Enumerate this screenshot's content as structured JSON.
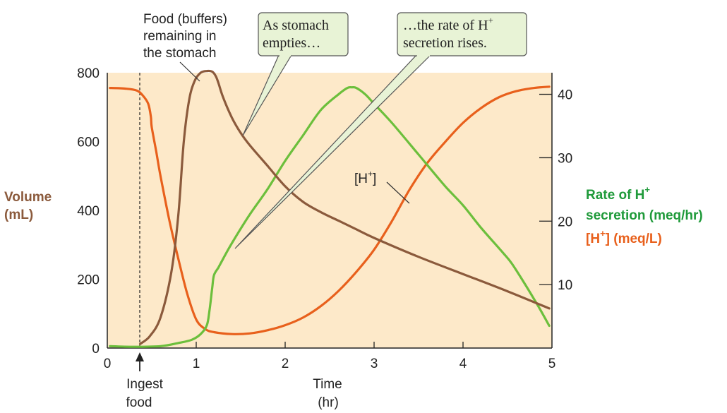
{
  "colors": {
    "plot_bg": "#fde9c9",
    "volume": "#8b5a3c",
    "secretion": "#6cbf3c",
    "h_conc": "#e8601c",
    "secretion_label": "#1f9a3a",
    "h_label": "#e8601c",
    "callout_bg": "#e8f3d6",
    "callout_border": "#555555"
  },
  "chart_data": {
    "type": "line",
    "x_axis": {
      "label": "Time",
      "unit": "(hr)",
      "range": [
        0,
        5
      ],
      "ticks": [
        "0",
        "1",
        "2",
        "3",
        "4",
        "5"
      ]
    },
    "y_left": {
      "label_line1": "Volume",
      "label_line2": "(mL)",
      "range": [
        0,
        800
      ],
      "ticks": [
        "0",
        "200",
        "400",
        "600",
        "800"
      ]
    },
    "y_right": {
      "label_line1_main": "Rate of H",
      "label_line1_sup": "+",
      "label_line2": "secretion (meq/hr)",
      "label_line3_pre": "[H",
      "label_line3_sup": "+",
      "label_line3_post": "] (meq/L)",
      "range": [
        0,
        43.4
      ],
      "ticks": [
        "10",
        "20",
        "30",
        "40"
      ]
    },
    "series": [
      {
        "key": "volume",
        "axis": "left",
        "x": [
          0.37,
          0.48,
          0.6,
          0.72,
          0.8,
          0.86,
          0.92,
          0.98,
          1.05,
          1.12,
          1.18,
          1.22,
          1.25,
          1.3,
          1.4,
          1.5,
          1.6,
          1.8,
          2.0,
          2.2,
          2.4,
          2.6,
          2.8,
          3.0,
          3.5,
          4.0,
          4.5,
          4.97
        ],
        "y": [
          12,
          35,
          90,
          220,
          390,
          600,
          720,
          775,
          800,
          805,
          803,
          790,
          770,
          730,
          670,
          625,
          590,
          530,
          470,
          425,
          395,
          370,
          345,
          320,
          265,
          215,
          165,
          115
        ]
      },
      {
        "key": "secretion",
        "axis": "right",
        "x": [
          0.03,
          0.3,
          0.6,
          0.8,
          0.95,
          1.05,
          1.12,
          1.15,
          1.18,
          1.2,
          1.25,
          1.3,
          1.4,
          1.6,
          1.8,
          2.0,
          2.2,
          2.4,
          2.6,
          2.7,
          2.75,
          2.8,
          2.9,
          3.0,
          3.2,
          3.5,
          3.8,
          4.0,
          4.2,
          4.45,
          4.55,
          4.7,
          4.85,
          4.97
        ],
        "y": [
          0.3,
          0.2,
          0.3,
          0.8,
          1.3,
          2.2,
          3.6,
          6.0,
          9.5,
          11.5,
          12.7,
          14.0,
          16.5,
          21.0,
          25.0,
          29.5,
          33.5,
          37.5,
          40.0,
          41.0,
          41.1,
          41.0,
          40.0,
          38.5,
          35.5,
          30.5,
          25.5,
          22.5,
          19.0,
          15.0,
          13.3,
          10.0,
          6.5,
          3.5
        ]
      },
      {
        "key": "h_conc",
        "axis": "right",
        "x": [
          0.03,
          0.2,
          0.33,
          0.4,
          0.46,
          0.49,
          0.5,
          0.55,
          0.6,
          0.7,
          0.8,
          0.9,
          1.0,
          1.1,
          1.2,
          1.4,
          1.6,
          1.8,
          2.0,
          2.2,
          2.4,
          2.6,
          2.8,
          3.0,
          3.2,
          3.4,
          3.6,
          3.8,
          4.0,
          4.2,
          4.4,
          4.6,
          4.8,
          4.97
        ],
        "y": [
          41.0,
          40.9,
          40.6,
          39.8,
          38.5,
          36.5,
          34.8,
          31.0,
          27.0,
          20.0,
          14.0,
          8.5,
          4.5,
          3.0,
          2.5,
          2.2,
          2.3,
          2.8,
          3.6,
          4.8,
          6.6,
          9.0,
          12.0,
          15.5,
          20.0,
          25.0,
          29.2,
          32.5,
          35.5,
          37.8,
          39.5,
          40.5,
          41.0,
          41.2
        ]
      }
    ]
  },
  "annotations": {
    "food_line1": "Food (buffers)",
    "food_line2": "remaining in",
    "food_line3": "the stomach",
    "callout1_line1": "As stomach",
    "callout1_line2": "empties…",
    "callout2_line1_main": "…the rate of H",
    "callout2_line1_sup": "+",
    "callout2_line2": "secretion rises.",
    "h_label_pre": "[H",
    "h_label_sup": "+",
    "h_label_post": "]",
    "ingest_line1": "Ingest",
    "ingest_line2": "food"
  }
}
